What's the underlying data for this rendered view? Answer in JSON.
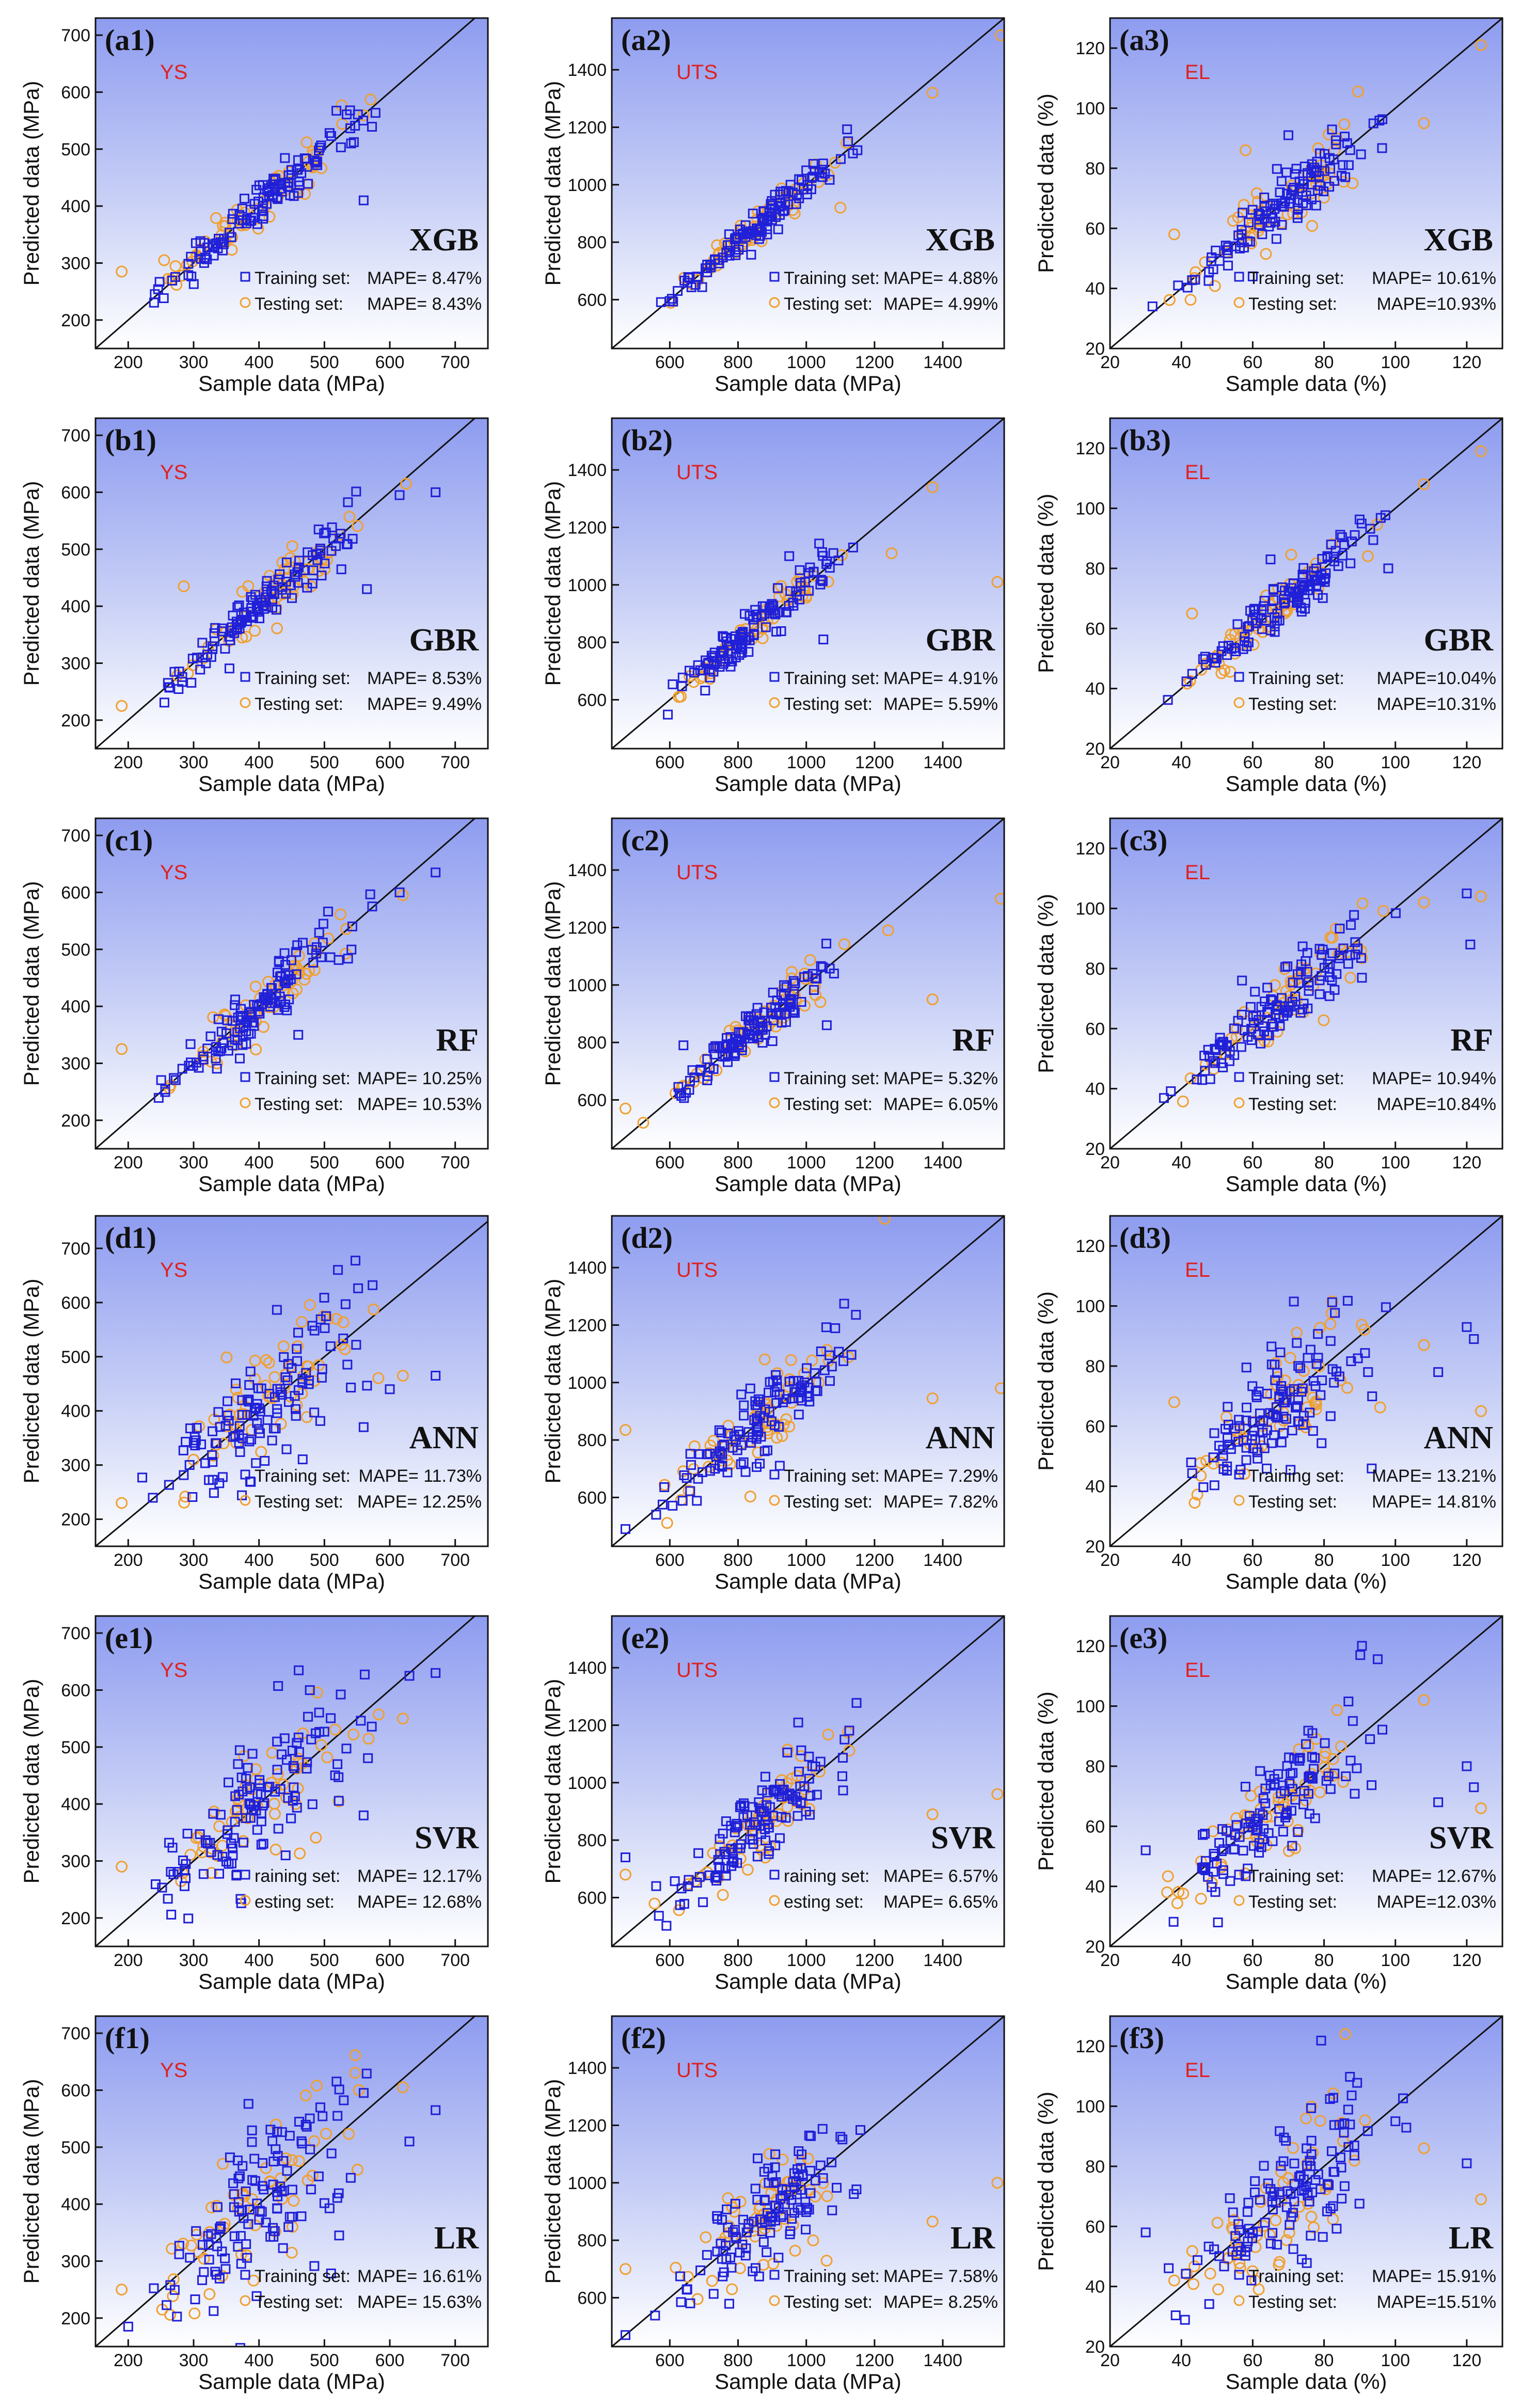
{
  "figure": {
    "legend_training": "Training set:",
    "legend_testing": "Testing set:",
    "legend_training_cut": "raining set:",
    "legend_testing_cut": "esting set:"
  },
  "columns": [
    {
      "property": "YS",
      "xlabel": "Sample data (MPa)",
      "ylabel": "Predicted data (MPa)",
      "xticks": [
        200,
        300,
        400,
        500,
        600,
        700
      ],
      "yticks": [
        200,
        300,
        400,
        500,
        600,
        700
      ]
    },
    {
      "property": "UTS",
      "xlabel": "Sample data (MPa)",
      "ylabel": "Predicted data (MPa)",
      "xticks": [
        600,
        800,
        1000,
        1200,
        1400
      ],
      "yticks": [
        600,
        800,
        1000,
        1200,
        1400
      ]
    },
    {
      "property": "EL",
      "xlabel": "Sample data (%)",
      "ylabel": "Predicted data (%)",
      "xticks": [
        20,
        40,
        60,
        80,
        100,
        120
      ],
      "yticks": [
        20,
        40,
        60,
        80,
        100,
        120
      ]
    }
  ],
  "chart_data": [
    {
      "type": "scatter",
      "panel": "(a1)",
      "model": "XGB",
      "title": "YS",
      "xlabel": "Sample data (MPa)",
      "ylabel": "Predicted data (MPa)",
      "xlim": [
        150,
        750
      ],
      "ylim": [
        150,
        730
      ],
      "train_mape": "MAPE= 8.47%",
      "test_mape": "MAPE= 8.43%",
      "legend_cut": false,
      "spread_train": 0.045,
      "spread_test": 0.05,
      "outliers_train": [
        [
          485,
          480
        ],
        [
          560,
          410
        ],
        [
          415,
          425
        ]
      ],
      "outliers_test": [
        [
          190,
          285
        ],
        [
          255,
          305
        ]
      ]
    },
    {
      "type": "scatter",
      "panel": "(a2)",
      "model": "XGB",
      "title": "UTS",
      "xlabel": "Sample data (MPa)",
      "ylabel": "Predicted data (MPa)",
      "xlim": [
        430,
        1580
      ],
      "ylim": [
        430,
        1580
      ],
      "train_mape": "MAPE= 4.88%",
      "test_mape": "MAPE= 4.99%",
      "legend_cut": false,
      "spread_train": 0.03,
      "spread_test": 0.03,
      "outliers_train": [
        [
          1000,
          1050
        ],
        [
          1150,
          1120
        ]
      ],
      "outliers_test": [
        [
          1570,
          1520
        ],
        [
          1370,
          1320
        ],
        [
          1100,
          920
        ]
      ]
    },
    {
      "type": "scatter",
      "panel": "(a3)",
      "model": "XGB",
      "title": "EL",
      "xlabel": "Sample data (%)",
      "ylabel": "Predicted data (%)",
      "xlim": [
        20,
        130
      ],
      "ylim": [
        20,
        130
      ],
      "train_mape": "MAPE= 10.61%",
      "test_mape": "MAPE=10.93%",
      "legend_cut": false,
      "spread_train": 0.06,
      "spread_test": 0.08,
      "outliers_train": [
        [
          70,
          91
        ],
        [
          60,
          44
        ]
      ],
      "outliers_test": [
        [
          38,
          58
        ],
        [
          58,
          86
        ],
        [
          108,
          95
        ],
        [
          124,
          121
        ],
        [
          88,
          75
        ]
      ]
    },
    {
      "type": "scatter",
      "panel": "(b1)",
      "model": "GBR",
      "title": "YS",
      "xlabel": "Sample data (MPa)",
      "ylabel": "Predicted data (MPa)",
      "xlim": [
        150,
        750
      ],
      "ylim": [
        150,
        730
      ],
      "train_mape": "MAPE= 8.53%",
      "test_mape": "MAPE= 9.49%",
      "legend_cut": false,
      "spread_train": 0.05,
      "spread_test": 0.06,
      "outliers_train": [
        [
          670,
          600
        ],
        [
          565,
          430
        ],
        [
          615,
          595
        ]
      ],
      "outliers_test": [
        [
          285,
          435
        ],
        [
          190,
          225
        ],
        [
          625,
          615
        ]
      ]
    },
    {
      "type": "scatter",
      "panel": "(b2)",
      "model": "GBR",
      "title": "UTS",
      "xlabel": "Sample data (MPa)",
      "ylabel": "Predicted data (MPa)",
      "xlim": [
        430,
        1580
      ],
      "ylim": [
        430,
        1580
      ],
      "train_mape": "MAPE= 4.91%",
      "test_mape": "MAPE= 5.59%",
      "legend_cut": false,
      "spread_train": 0.035,
      "spread_test": 0.035,
      "outliers_train": [
        [
          1050,
          810
        ],
        [
          950,
          1100
        ]
      ],
      "outliers_test": [
        [
          1560,
          1010
        ],
        [
          1370,
          1340
        ],
        [
          1250,
          1110
        ]
      ]
    },
    {
      "type": "scatter",
      "panel": "(b3)",
      "model": "GBR",
      "title": "EL",
      "xlabel": "Sample data (%)",
      "ylabel": "Predicted data (%)",
      "xlim": [
        20,
        130
      ],
      "ylim": [
        20,
        130
      ],
      "train_mape": "MAPE=10.04%",
      "test_mape": "MAPE=10.31%",
      "legend_cut": false,
      "spread_train": 0.06,
      "spread_test": 0.06,
      "outliers_train": [
        [
          65,
          83
        ],
        [
          98,
          80
        ]
      ],
      "outliers_test": [
        [
          43,
          65
        ],
        [
          124,
          119
        ],
        [
          108,
          108
        ]
      ]
    },
    {
      "type": "scatter",
      "panel": "(c1)",
      "model": "RF",
      "title": "YS",
      "xlabel": "Sample data (MPa)",
      "ylabel": "Predicted data (MPa)",
      "xlim": [
        150,
        750
      ],
      "ylim": [
        150,
        730
      ],
      "train_mape": "MAPE= 10.25%",
      "test_mape": "MAPE= 10.53%",
      "legend_cut": false,
      "spread_train": 0.06,
      "spread_test": 0.06,
      "outliers_train": [
        [
          670,
          635
        ],
        [
          615,
          600
        ],
        [
          460,
          350
        ]
      ],
      "outliers_test": [
        [
          190,
          325
        ],
        [
          620,
          595
        ]
      ]
    },
    {
      "type": "scatter",
      "panel": "(c2)",
      "model": "RF",
      "title": "UTS",
      "xlabel": "Sample data (MPa)",
      "ylabel": "Predicted data (MPa)",
      "xlim": [
        430,
        1580
      ],
      "ylim": [
        430,
        1580
      ],
      "train_mape": "MAPE= 5.32%",
      "test_mape": "MAPE= 6.05%",
      "legend_cut": false,
      "spread_train": 0.04,
      "spread_test": 0.04,
      "outliers_train": [
        [
          1060,
          860
        ],
        [
          640,
          790
        ]
      ],
      "outliers_test": [
        [
          1570,
          1300
        ],
        [
          1370,
          950
        ],
        [
          1240,
          1190
        ],
        [
          470,
          570
        ]
      ]
    },
    {
      "type": "scatter",
      "panel": "(c3)",
      "model": "RF",
      "title": "EL",
      "xlabel": "Sample data (%)",
      "ylabel": "Predicted data (%)",
      "xlim": [
        20,
        130
      ],
      "ylim": [
        20,
        130
      ],
      "train_mape": "MAPE= 10.94%",
      "test_mape": "MAPE=10.84%",
      "legend_cut": false,
      "spread_train": 0.08,
      "spread_test": 0.07,
      "outliers_train": [
        [
          121,
          88
        ],
        [
          57,
          76
        ],
        [
          120,
          105
        ]
      ],
      "outliers_test": [
        [
          124,
          104
        ],
        [
          108,
          102
        ]
      ]
    },
    {
      "type": "scatter",
      "panel": "(d1)",
      "model": "ANN",
      "title": "YS",
      "xlabel": "Sample data (MPa)",
      "ylabel": "Predicted data (MPa)",
      "xlim": [
        150,
        750
      ],
      "ylim": [
        150,
        760
      ],
      "train_mape": "MAPE= 11.73%",
      "test_mape": "MAPE= 12.25%",
      "legend_cut": false,
      "spread_train": 0.14,
      "spread_test": 0.14,
      "outliers_train": [
        [
          670,
          465
        ],
        [
          560,
          370
        ],
        [
          600,
          440
        ]
      ],
      "outliers_test": [
        [
          620,
          465
        ],
        [
          190,
          230
        ]
      ]
    },
    {
      "type": "scatter",
      "panel": "(d2)",
      "model": "ANN",
      "title": "UTS",
      "xlabel": "Sample data (MPa)",
      "ylabel": "Predicted data (MPa)",
      "xlim": [
        430,
        1580
      ],
      "ylim": [
        430,
        1580
      ],
      "train_mape": "MAPE= 7.29%",
      "test_mape": "MAPE= 7.82%",
      "legend_cut": false,
      "spread_train": 0.07,
      "spread_test": 0.08,
      "outliers_train": [
        [
          470,
          490
        ],
        [
          560,
          540
        ]
      ],
      "outliers_test": [
        [
          1570,
          980
        ],
        [
          1370,
          945
        ],
        [
          1230,
          1570
        ],
        [
          470,
          835
        ]
      ]
    },
    {
      "type": "scatter",
      "panel": "(d3)",
      "model": "ANN",
      "title": "EL",
      "xlabel": "Sample data (%)",
      "ylabel": "Predicted data (%)",
      "xlim": [
        20,
        130
      ],
      "ylim": [
        20,
        130
      ],
      "train_mape": "MAPE= 13.21%",
      "test_mape": "MAPE= 14.81%",
      "legend_cut": false,
      "spread_train": 0.14,
      "spread_test": 0.14,
      "outliers_train": [
        [
          120,
          93
        ],
        [
          122,
          89
        ],
        [
          112,
          78
        ]
      ],
      "outliers_test": [
        [
          124,
          65
        ],
        [
          38,
          68
        ],
        [
          108,
          87
        ]
      ]
    },
    {
      "type": "scatter",
      "panel": "(e1)",
      "model": "SVR",
      "title": "YS",
      "xlabel": "Sample data (MPa)",
      "ylabel": "Predicted data (MPa)",
      "xlim": [
        150,
        750
      ],
      "ylim": [
        150,
        730
      ],
      "train_mape": "MAPE= 12.17%",
      "test_mape": "MAPE= 12.68%",
      "legend_cut": true,
      "spread_train": 0.14,
      "spread_test": 0.14,
      "outliers_train": [
        [
          670,
          630
        ],
        [
          630,
          625
        ],
        [
          560,
          380
        ]
      ],
      "outliers_test": [
        [
          620,
          550
        ],
        [
          190,
          290
        ],
        [
          420,
          490
        ]
      ]
    },
    {
      "type": "scatter",
      "panel": "(e2)",
      "model": "SVR",
      "title": "UTS",
      "xlabel": "Sample data (MPa)",
      "ylabel": "Predicted data (MPa)",
      "xlim": [
        430,
        1580
      ],
      "ylim": [
        430,
        1580
      ],
      "train_mape": "MAPE= 6.57%",
      "test_mape": "MAPE= 6.65%",
      "legend_cut": true,
      "spread_train": 0.08,
      "spread_test": 0.08,
      "outliers_train": [
        [
          470,
          740
        ],
        [
          560,
          640
        ]
      ],
      "outliers_test": [
        [
          1560,
          960
        ],
        [
          1370,
          890
        ],
        [
          470,
          680
        ]
      ]
    },
    {
      "type": "scatter",
      "panel": "(e3)",
      "model": "SVR",
      "title": "EL",
      "xlabel": "Sample data (%)",
      "ylabel": "Predicted data (%)",
      "xlim": [
        20,
        130
      ],
      "ylim": [
        20,
        130
      ],
      "train_mape": "MAPE= 12.67%",
      "test_mape": "MAPE=12.03%",
      "legend_cut": false,
      "spread_train": 0.13,
      "spread_test": 0.13,
      "outliers_train": [
        [
          120,
          80
        ],
        [
          122,
          73
        ],
        [
          112,
          68
        ],
        [
          30,
          52
        ]
      ],
      "outliers_test": [
        [
          124,
          66
        ],
        [
          108,
          102
        ],
        [
          36,
          38
        ]
      ]
    },
    {
      "type": "scatter",
      "panel": "(f1)",
      "model": "LR",
      "title": "YS",
      "xlabel": "Sample data (MPa)",
      "ylabel": "Predicted data (MPa)",
      "xlim": [
        150,
        750
      ],
      "ylim": [
        150,
        730
      ],
      "train_mape": "MAPE= 16.61%",
      "test_mape": "MAPE= 15.63%",
      "legend_cut": false,
      "spread_train": 0.18,
      "spread_test": 0.17,
      "outliers_train": [
        [
          670,
          565
        ],
        [
          630,
          510
        ],
        [
          520,
          555
        ],
        [
          200,
          185
        ]
      ],
      "outliers_test": [
        [
          620,
          605
        ],
        [
          190,
          250
        ]
      ]
    },
    {
      "type": "scatter",
      "panel": "(f2)",
      "model": "LR",
      "title": "UTS",
      "xlabel": "Sample data (MPa)",
      "ylabel": "Predicted data (MPa)",
      "xlim": [
        430,
        1580
      ],
      "ylim": [
        430,
        1580
      ],
      "train_mape": "MAPE= 7.58%",
      "test_mape": "MAPE= 8.25%",
      "legend_cut": false,
      "spread_train": 0.1,
      "spread_test": 0.1,
      "outliers_train": [
        [
          470,
          470
        ],
        [
          1100,
          1160
        ]
      ],
      "outliers_test": [
        [
          1560,
          1000
        ],
        [
          1370,
          865
        ],
        [
          470,
          700
        ]
      ]
    },
    {
      "type": "scatter",
      "panel": "(f3)",
      "model": "LR",
      "title": "EL",
      "xlabel": "Sample data (%)",
      "ylabel": "Predicted data (%)",
      "xlim": [
        20,
        130
      ],
      "ylim": [
        20,
        130
      ],
      "train_mape": "MAPE= 15.91%",
      "test_mape": "MAPE=15.51%",
      "legend_cut": false,
      "spread_train": 0.17,
      "spread_test": 0.17,
      "outliers_train": [
        [
          100,
          95
        ],
        [
          120,
          81
        ],
        [
          30,
          58
        ]
      ],
      "outliers_test": [
        [
          124,
          69
        ],
        [
          108,
          86
        ],
        [
          38,
          42
        ]
      ]
    }
  ]
}
